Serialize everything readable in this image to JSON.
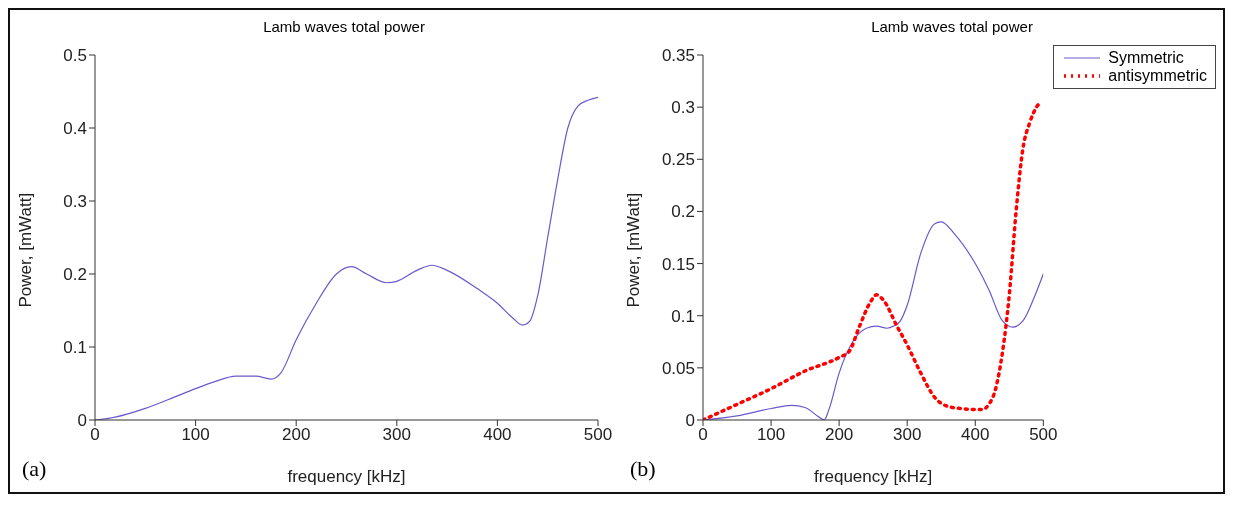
{
  "chart_data": [
    {
      "type": "line",
      "title": "Lamb waves total power",
      "xlabel": "frequency [kHz]",
      "ylabel": "Power, [mWatt]",
      "annotations": [
        "(a)"
      ],
      "xlim": [
        0,
        500
      ],
      "xticks": [
        0,
        100,
        200,
        300,
        400,
        500
      ],
      "ylim": [
        0,
        0.5
      ],
      "yticks": [
        0,
        0.1,
        0.2,
        0.3,
        0.4,
        0.5
      ],
      "series": [
        {
          "color": "#6a5acd",
          "line_style": "solid",
          "x": [
            0,
            20,
            50,
            80,
            100,
            120,
            140,
            160,
            175,
            185,
            200,
            220,
            240,
            255,
            270,
            290,
            300,
            320,
            335,
            350,
            380,
            400,
            415,
            425,
            432,
            440,
            450,
            460,
            470,
            480,
            490,
            500
          ],
          "values": [
            0,
            0.004,
            0.016,
            0.032,
            0.043,
            0.053,
            0.06,
            0.06,
            0.056,
            0.065,
            0.11,
            0.16,
            0.2,
            0.21,
            0.2,
            0.188,
            0.19,
            0.205,
            0.212,
            0.205,
            0.18,
            0.16,
            0.14,
            0.13,
            0.135,
            0.17,
            0.25,
            0.33,
            0.4,
            0.43,
            0.438,
            0.442
          ]
        }
      ]
    },
    {
      "type": "line",
      "title": "Lamb waves total power",
      "xlabel": "frequency [kHz]",
      "ylabel": "Power, [mWatt]",
      "annotations": [
        "(b)"
      ],
      "xlim": [
        0,
        500
      ],
      "xticks": [
        0,
        100,
        200,
        300,
        400,
        500
      ],
      "ylim": [
        0,
        0.35
      ],
      "yticks": [
        0,
        0.05,
        0.1,
        0.15,
        0.2,
        0.25,
        0.3,
        0.35
      ],
      "legend": "top right",
      "series": [
        {
          "name": "Symmetric",
          "color": "#6a5acd",
          "line_style": "solid",
          "x": [
            0,
            50,
            100,
            130,
            150,
            170,
            178,
            185,
            200,
            220,
            240,
            255,
            270,
            280,
            290,
            300,
            320,
            340,
            350,
            370,
            400,
            420,
            440,
            455,
            470,
            485,
            500
          ],
          "values": [
            0,
            0.004,
            0.011,
            0.014,
            0.012,
            0.003,
            0,
            0.01,
            0.045,
            0.075,
            0.088,
            0.09,
            0.088,
            0.09,
            0.095,
            0.11,
            0.16,
            0.188,
            0.19,
            0.178,
            0.15,
            0.125,
            0.095,
            0.089,
            0.095,
            0.115,
            0.14
          ]
        },
        {
          "name": "antisymmetric",
          "color": "#ff0000",
          "line_style": "dotted",
          "x": [
            0,
            50,
            100,
            150,
            200,
            215,
            230,
            245,
            255,
            265,
            285,
            300,
            320,
            340,
            360,
            380,
            400,
            410,
            420,
            430,
            440,
            450,
            460,
            470,
            480,
            490,
            497
          ],
          "values": [
            0,
            0.015,
            0.03,
            0.047,
            0.06,
            0.066,
            0.09,
            0.112,
            0.12,
            0.115,
            0.09,
            0.072,
            0.045,
            0.022,
            0.013,
            0.011,
            0.01,
            0.01,
            0.015,
            0.03,
            0.065,
            0.12,
            0.2,
            0.26,
            0.285,
            0.3,
            0.305
          ]
        }
      ]
    }
  ]
}
